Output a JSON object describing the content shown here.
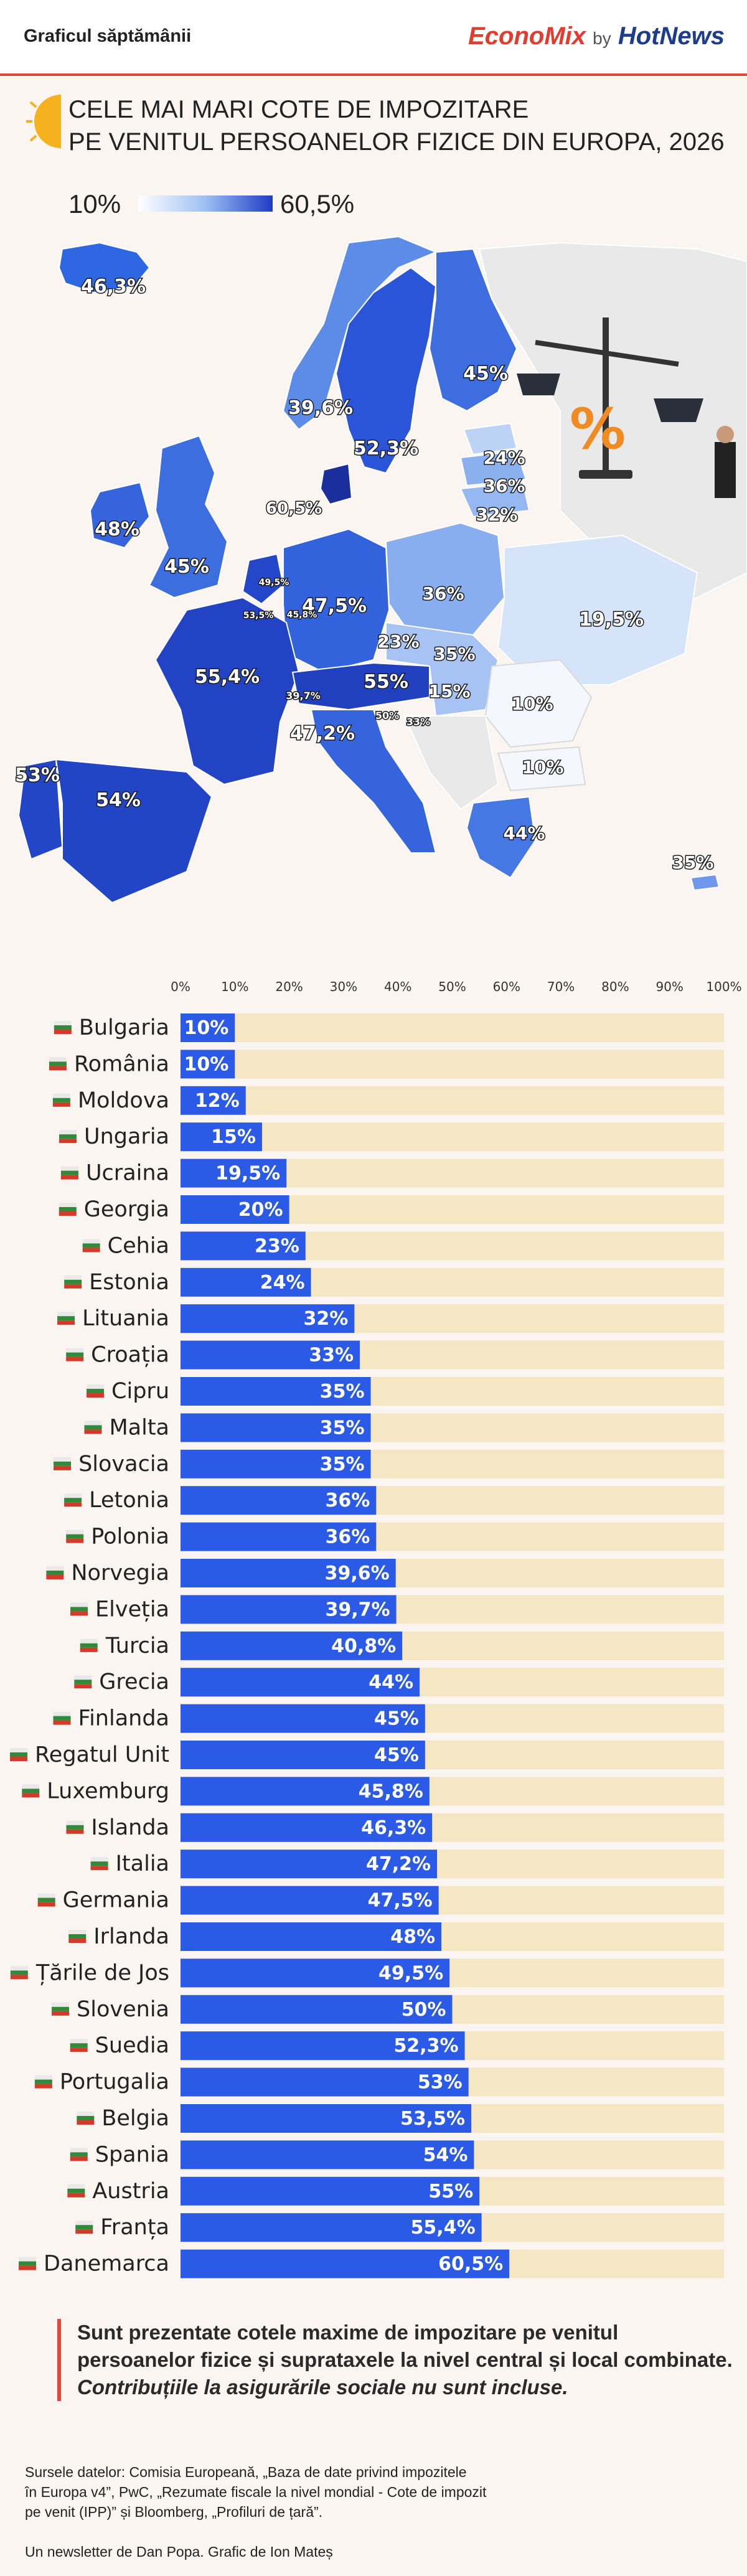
{
  "header": {
    "label": "Graficul săptămânii",
    "brand_econ": "EconoMix",
    "brand_by": "by",
    "brand_hot": "HotNews"
  },
  "title": {
    "line1": "CELE MAI MARI COTE DE IMPOZITARE",
    "line2": "PE VENITUL PERSOANELOR FIZICE DIN EUROPA, 2026"
  },
  "legend": {
    "min": "10%",
    "max": "60,5%"
  },
  "colors": {
    "bar": "#2b5be6",
    "track": "#f5e6c4",
    "accent": "#e3473a",
    "map_none": "#e9e9e9"
  },
  "map_labels": [
    {
      "country": "Islanda",
      "text": "46,3%"
    },
    {
      "country": "Norvegia",
      "text": "39,6%"
    },
    {
      "country": "Suedia",
      "text": "52,3%"
    },
    {
      "country": "Finlanda",
      "text": "45%"
    },
    {
      "country": "Estonia",
      "text": "24%"
    },
    {
      "country": "Letonia",
      "text": "36%"
    },
    {
      "country": "Lituania",
      "text": "32%"
    },
    {
      "country": "Danemarca",
      "text": "60,5%"
    },
    {
      "country": "Irlanda",
      "text": "48%"
    },
    {
      "country": "Regatul Unit",
      "text": "45%"
    },
    {
      "country": "Țările de Jos",
      "text": "49,5%"
    },
    {
      "country": "Belgia",
      "text": "53,5%"
    },
    {
      "country": "Germania",
      "text": "47,5%"
    },
    {
      "country": "Polonia",
      "text": "36%"
    },
    {
      "country": "Ucraina",
      "text": "19,5%"
    },
    {
      "country": "Franța",
      "text": "55,4%"
    },
    {
      "country": "Luxemburg",
      "text": "45,8%"
    },
    {
      "country": "Elveția",
      "text": "39,7%"
    },
    {
      "country": "Austria",
      "text": "55%"
    },
    {
      "country": "Cehia",
      "text": "23%"
    },
    {
      "country": "Slovacia",
      "text": "35%"
    },
    {
      "country": "Ungaria",
      "text": "15%"
    },
    {
      "country": "Slovenia",
      "text": "50%"
    },
    {
      "country": "Croația",
      "text": "33%"
    },
    {
      "country": "Italia",
      "text": "47,2%"
    },
    {
      "country": "România",
      "text": "10%"
    },
    {
      "country": "Bulgaria",
      "text": "10%"
    },
    {
      "country": "Grecia",
      "text": "44%"
    },
    {
      "country": "Portugalia",
      "text": "53%"
    },
    {
      "country": "Spania",
      "text": "54%"
    },
    {
      "country": "Cipru",
      "text": "35%"
    }
  ],
  "chart_data": {
    "type": "bar",
    "orientation": "horizontal",
    "xlim": [
      0,
      100
    ],
    "x_ticks": [
      "0%",
      "10%",
      "20%",
      "30%",
      "40%",
      "50%",
      "60%",
      "70%",
      "80%",
      "90%",
      "100%"
    ],
    "categories": [
      "Bulgaria",
      "România",
      "Moldova",
      "Ungaria",
      "Ucraina",
      "Georgia",
      "Cehia",
      "Estonia",
      "Lituania",
      "Croația",
      "Cipru",
      "Malta",
      "Slovacia",
      "Letonia",
      "Polonia",
      "Norvegia",
      "Elveția",
      "Turcia",
      "Grecia",
      "Finlanda",
      "Regatul Unit",
      "Luxemburg",
      "Islanda",
      "Italia",
      "Germania",
      "Irlanda",
      "Țările de Jos",
      "Slovenia",
      "Suedia",
      "Portugalia",
      "Belgia",
      "Spania",
      "Austria",
      "Franța",
      "Danemarca"
    ],
    "values": [
      10,
      10,
      12,
      15,
      19.5,
      20,
      23,
      24,
      32,
      33,
      35,
      35,
      35,
      36,
      36,
      39.6,
      39.7,
      40.8,
      44,
      45,
      45,
      45.8,
      46.3,
      47.2,
      47.5,
      48,
      49.5,
      50,
      52.3,
      53,
      53.5,
      54,
      55,
      55.4,
      60.5
    ],
    "value_labels": [
      "10%",
      "10%",
      "12%",
      "15%",
      "19,5%",
      "20%",
      "23%",
      "24%",
      "32%",
      "33%",
      "35%",
      "35%",
      "35%",
      "36%",
      "36%",
      "39,6%",
      "39,7%",
      "40,8%",
      "44%",
      "45%",
      "45%",
      "45,8%",
      "46,3%",
      "47,2%",
      "47,5%",
      "48%",
      "49,5%",
      "50%",
      "52,3%",
      "53%",
      "53,5%",
      "54%",
      "55%",
      "55,4%",
      "60,5%"
    ]
  },
  "note": {
    "text": "Sunt prezentate cotele maxime de impozitare pe venitul persoanelor fizice și suprataxele la nivel central și local combinate.",
    "emphasis": "Contribuțiile la asigurările sociale nu sunt incluse."
  },
  "sources": {
    "line1": "Sursele datelor: Comisia Europeană, „Baza de date privind impozitele",
    "line2": "în Europa v4”, PwC, „Rezumate fiscale la nivel mondial - Cote de impozit",
    "line3": "pe venit (IPP)” și Bloomberg, „Profiluri de țară”."
  },
  "credits": "Un newsletter de Dan Popa. Grafic de Ion Mateș"
}
